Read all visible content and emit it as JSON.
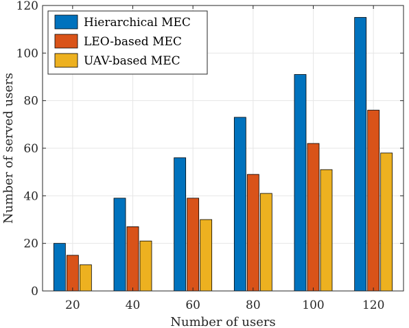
{
  "chart_data": {
    "type": "bar",
    "xlabel": "Number of users",
    "ylabel": "Number of served users",
    "categories": [
      "20",
      "40",
      "60",
      "80",
      "100",
      "120"
    ],
    "ylim": [
      0,
      120
    ],
    "yticks": [
      "0",
      "20",
      "40",
      "60",
      "80",
      "100",
      "120"
    ],
    "grid": true,
    "legend_position": "top-left",
    "series": [
      {
        "name": "Hierarchical MEC",
        "color": "#0072BD",
        "values": [
          20,
          39,
          56,
          73,
          91,
          115
        ]
      },
      {
        "name": "LEO-based MEC",
        "color": "#D95319",
        "values": [
          15,
          27,
          39,
          49,
          62,
          76
        ]
      },
      {
        "name": "UAV-based MEC",
        "color": "#EDB120",
        "values": [
          11,
          21,
          30,
          41,
          51,
          58
        ]
      }
    ]
  }
}
